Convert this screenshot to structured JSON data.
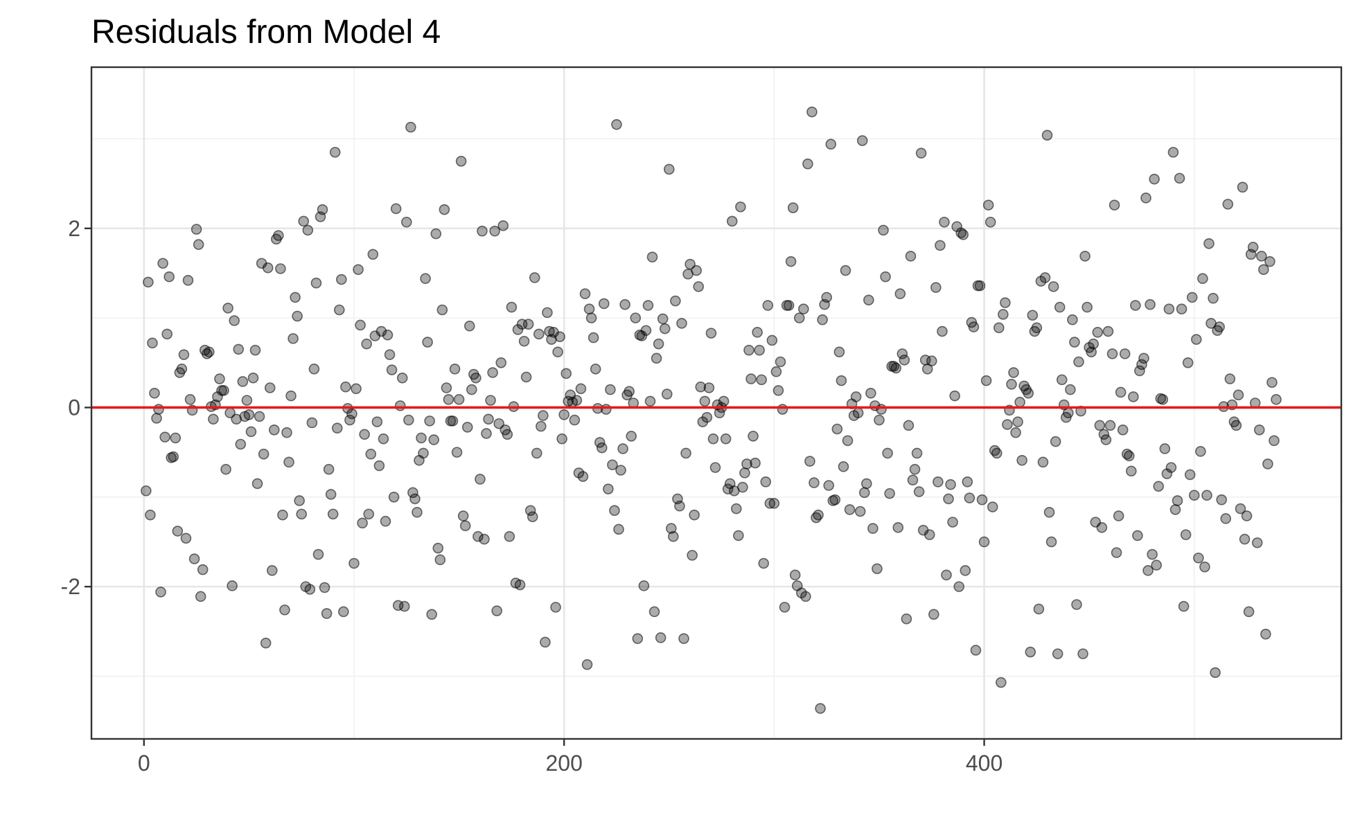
{
  "chart_data": {
    "type": "scatter",
    "title": "Residuals from Model 4",
    "xlabel": "",
    "ylabel": "",
    "xlim": [
      -25,
      570
    ],
    "ylim": [
      -3.7,
      3.8
    ],
    "x_ticks": [
      0,
      200,
      400
    ],
    "y_ticks": [
      -2,
      0,
      2
    ],
    "x_tick_labels": [
      "0",
      "200",
      "400"
    ],
    "y_tick_labels": [
      "-2",
      "0",
      "2"
    ],
    "grid": true,
    "reference_line": {
      "y": 0,
      "color": "#e41a1c"
    },
    "point_color": "#000000",
    "y": [
      -0.93,
      1.4,
      -1.2,
      0.72,
      0.16,
      -0.12,
      -0.02,
      -2.06,
      1.61,
      -0.33,
      0.82,
      1.46,
      -0.56,
      -0.55,
      -0.34,
      -1.38,
      0.39,
      0.43,
      0.59,
      -1.46,
      1.42,
      0.09,
      -0.03,
      -1.69,
      1.99,
      1.82,
      -2.11,
      -1.81,
      0.64,
      0.6,
      0.62,
      0.01,
      -0.13,
      0.03,
      0.12,
      0.32,
      0.19,
      0.19,
      -0.69,
      1.11,
      -0.06,
      -1.99,
      0.97,
      -0.13,
      0.65,
      -0.41,
      0.29,
      -0.1,
      0.08,
      -0.08,
      -0.27,
      0.33,
      0.64,
      -0.85,
      -0.1,
      1.61,
      -0.52,
      -2.63,
      1.56,
      0.22,
      -1.82,
      -0.25,
      1.88,
      1.92,
      1.55,
      -1.2,
      -2.26,
      -0.28,
      -0.61,
      0.13,
      0.77,
      1.23,
      1.02,
      -1.04,
      -1.19,
      2.08,
      -2.0,
      1.98,
      -2.03,
      -0.17,
      0.43,
      1.39,
      -1.64,
      2.13,
      2.21,
      -2.01,
      -2.3,
      -0.69,
      -0.97,
      -1.19,
      2.85,
      -0.23,
      1.09,
      1.43,
      -2.28,
      0.23,
      -0.01,
      -0.14,
      -0.07,
      -1.74,
      0.21,
      1.54,
      0.92,
      -1.29,
      -0.3,
      0.71,
      -1.19,
      -0.52,
      1.71,
      0.8,
      -0.16,
      -0.65,
      0.85,
      -0.35,
      -1.27,
      0.81,
      0.59,
      0.42,
      -1.0,
      2.22,
      -2.21,
      0.02,
      0.33,
      -2.22,
      2.07,
      -0.14,
      3.13,
      -0.95,
      -1.02,
      -1.17,
      -0.59,
      -0.34,
      -0.51,
      1.44,
      0.73,
      -0.15,
      -2.31,
      -0.36,
      1.94,
      -1.57,
      -1.7,
      1.09,
      2.21,
      0.22,
      0.09,
      -0.15,
      -0.15,
      0.43,
      -0.5,
      0.09,
      2.75,
      -1.21,
      -1.32,
      -0.22,
      0.91,
      0.2,
      0.37,
      0.33,
      -1.44,
      -0.8,
      1.97,
      -1.47,
      -0.29,
      -0.13,
      0.08,
      0.39,
      1.97,
      -2.27,
      -0.18,
      0.5,
      2.03,
      -0.25,
      -0.3,
      -1.44,
      1.12,
      0.01,
      -1.96,
      0.87,
      -1.98,
      0.93,
      0.74,
      0.34,
      0.93,
      -1.15,
      -1.22,
      1.45,
      -0.51,
      0.82,
      -0.21,
      -0.09,
      -2.62,
      1.06,
      0.85,
      0.76,
      0.84,
      -2.23,
      0.62,
      0.79,
      -0.35,
      -0.08,
      0.38,
      0.07,
      0.14,
      0.06,
      -0.14,
      0.08,
      -0.73,
      0.21,
      -0.77,
      1.27,
      -2.87,
      1.1,
      1.0,
      0.78,
      0.43,
      -0.01,
      -0.39,
      -0.45,
      1.16,
      -0.02,
      -0.91,
      0.2,
      -0.64,
      -1.15,
      3.16,
      -1.36,
      -0.7,
      -0.46,
      1.15,
      0.14,
      0.18,
      -0.32,
      0.05,
      1.0,
      -2.58,
      0.81,
      0.8,
      -1.99,
      0.86,
      1.14,
      0.07,
      1.68,
      -2.28,
      0.55,
      0.71,
      -2.57,
      0.99,
      0.88,
      0.15,
      2.66,
      -1.35,
      -1.44,
      1.19,
      -1.02,
      -1.1,
      0.94,
      -2.58,
      -0.51,
      1.49,
      1.6,
      -1.65,
      -1.2,
      1.53,
      1.35,
      0.23,
      -0.16,
      0.07,
      -0.11,
      0.22,
      0.83,
      -0.35,
      -0.67,
      0.03,
      -0.06,
      0.0,
      0.07,
      -0.35,
      -0.91,
      -0.85,
      2.08,
      -0.93,
      -1.13,
      -1.43,
      2.24,
      -0.89,
      -0.73,
      -0.63,
      0.64,
      0.32,
      -0.32,
      -0.62,
      0.84,
      0.64,
      0.31,
      -1.74,
      -0.83,
      1.14,
      -1.07,
      0.75,
      -1.07,
      0.4,
      0.19,
      0.51,
      -0.02,
      -2.23,
      1.14,
      1.14,
      1.63,
      2.23,
      -1.87,
      -1.99,
      1.0,
      -2.07,
      1.1,
      -2.11,
      2.72,
      -0.6,
      3.3,
      -0.84,
      -1.23,
      -1.2,
      -3.36,
      0.98,
      1.15,
      1.23,
      -0.87,
      2.94,
      -1.04,
      -1.03,
      -0.24,
      0.62,
      0.3,
      -0.66,
      1.53,
      -0.37,
      -1.14,
      0.04,
      -0.09,
      0.12,
      -0.06,
      -1.16,
      2.98,
      -0.95,
      -0.85,
      1.2,
      0.16,
      -1.35,
      0.02,
      -1.8,
      -0.14,
      -0.02,
      1.98,
      1.46,
      -0.51,
      -0.96,
      0.46,
      0.46,
      0.44,
      -1.34,
      1.27,
      0.6,
      0.53,
      -2.36,
      -0.2,
      1.69,
      -0.81,
      -0.69,
      -0.51,
      -0.94,
      2.84,
      -1.37,
      0.53,
      0.43,
      -1.42,
      0.52,
      -2.31,
      1.34,
      -0.83,
      1.81,
      0.85,
      2.07,
      -1.87,
      -1.02,
      -0.86,
      -1.28,
      0.13,
      2.02,
      -2.0,
      1.95,
      1.93,
      -1.82,
      -0.83,
      -1.01,
      0.95,
      0.9,
      -2.71,
      1.36,
      1.36,
      -1.03,
      -1.5,
      0.3,
      2.26,
      2.07,
      -1.11,
      -0.48,
      -0.51,
      0.89,
      -3.07,
      1.04,
      1.17,
      -0.19,
      -0.03,
      0.26,
      0.39,
      -0.28,
      -0.16,
      0.06,
      -0.59,
      0.24,
      0.2,
      0.16,
      -2.73,
      1.03,
      0.85,
      0.89,
      -2.25,
      1.41,
      -0.61,
      1.45,
      3.04,
      -1.17,
      -1.5,
      1.35,
      -0.38,
      -2.75,
      1.12,
      0.31,
      0.03,
      -0.11,
      -0.06,
      0.2,
      0.98,
      0.73,
      -2.2,
      0.51,
      -0.04,
      -2.75,
      1.69,
      1.12,
      0.67,
      0.62,
      0.71,
      -1.28,
      0.84,
      -0.2,
      -1.34,
      -0.3,
      -0.36,
      0.85,
      -0.2,
      0.6,
      2.26,
      -1.62,
      -1.21,
      0.17,
      -0.25,
      0.6,
      -0.52,
      -0.54,
      -0.71,
      0.12,
      1.14,
      -1.43,
      0.41,
      0.48,
      0.55,
      2.34,
      -1.82,
      1.15,
      -1.64,
      2.55,
      -1.76,
      -0.88,
      0.1,
      0.09,
      -0.46,
      -0.74,
      1.1,
      -0.67,
      2.85,
      -1.14,
      -1.04,
      2.56,
      1.1,
      -2.22,
      -1.42,
      0.5,
      -0.75,
      1.23,
      -0.98,
      0.76,
      -1.68,
      -0.49,
      1.44,
      -1.78,
      -0.98,
      1.83,
      0.94,
      1.22,
      -2.96,
      0.86,
      0.9,
      -1.03,
      0.01,
      -1.24,
      2.27,
      0.32,
      0.03,
      -0.16,
      -0.2,
      0.14,
      -1.13,
      2.46,
      -1.47,
      -1.21,
      -2.28,
      1.71,
      1.79,
      0.05,
      -1.51,
      -0.25,
      1.69,
      1.54,
      -2.53,
      -0.63,
      1.63,
      0.28,
      -0.37,
      0.09
    ]
  }
}
